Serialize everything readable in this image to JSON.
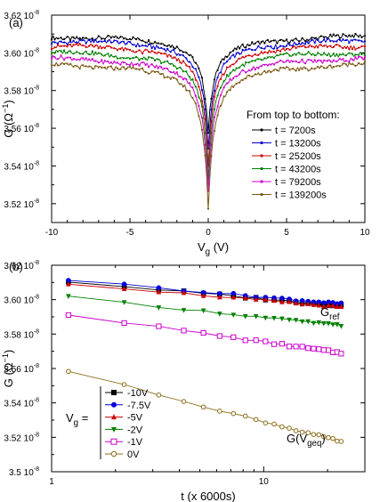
{
  "chart_data": [
    {
      "panel_label": "(a)",
      "type": "line",
      "xlabel": "V",
      "xlabel_sub": "g",
      "xlabel_unit": "(V)",
      "ylabel": "G (Ω",
      "ylabel_sup": "−1",
      "ylabel_close": ")",
      "xlim": [
        -10,
        10
      ],
      "ylim": [
        3.51e-08,
        3.62e-08
      ],
      "x_ticks": [
        -10,
        -5,
        0,
        5,
        10
      ],
      "y_ticks": [
        3.52e-08,
        3.54e-08,
        3.56e-08,
        3.58e-08,
        3.6e-08,
        3.62e-08
      ],
      "x_tick_labels": [
        "-10",
        "-5",
        "0",
        "5",
        "10"
      ],
      "y_tick_labels": [
        "3.52 10",
        "3.54 10",
        "3.56 10",
        "3.58 10",
        "3.60 10",
        "3.62 10"
      ],
      "y_tick_exp": "-8",
      "legend_title": "From top to bottom:",
      "legend_position": "lower-right",
      "series": [
        {
          "name": "t = 7200s",
          "color": "#000000",
          "plateau": 3.61e-08,
          "minimum": 3.558e-08
        },
        {
          "name": "t = 13200s",
          "color": "#0000cc",
          "plateau": 3.608e-08,
          "minimum": 3.549e-08
        },
        {
          "name": "t = 25200s",
          "color": "#cc0000",
          "plateau": 3.6055e-08,
          "minimum": 3.541e-08
        },
        {
          "name": "t = 43200s",
          "color": "#008000",
          "plateau": 3.602e-08,
          "minimum": 3.534e-08
        },
        {
          "name": "t = 79200s",
          "color": "#cc00cc",
          "plateau": 3.599e-08,
          "minimum": 3.526e-08
        },
        {
          "name": "t = 139200s",
          "color": "#7a5a14",
          "plateau": 3.596e-08,
          "minimum": 3.517e-08
        }
      ]
    },
    {
      "panel_label": "(b)",
      "type": "scatter",
      "xscale": "log",
      "xlabel": "t (x 6000s)",
      "ylabel": "G (Ω",
      "ylabel_sup": "−1",
      "ylabel_close": ")",
      "xlim": [
        1,
        30
      ],
      "ylim": [
        3.5e-08,
        3.62e-08
      ],
      "x_ticks": [
        1,
        10
      ],
      "x_tick_labels": [
        "1",
        "10"
      ],
      "y_ticks": [
        3.5e-08,
        3.52e-08,
        3.54e-08,
        3.56e-08,
        3.58e-08,
        3.6e-08,
        3.62e-08
      ],
      "y_tick_labels": [
        "3.5 10",
        "3.52 10",
        "3.54 10",
        "3.56 10",
        "3.58 10",
        "3.60 10",
        "3.62 10"
      ],
      "y_tick_exp": "-8",
      "legend_prefix": "V",
      "legend_prefix_sub": "g",
      "legend_prefix_eq": "=",
      "legend_position": "lower-left",
      "annotations": [
        {
          "text": "G",
          "sub": "ref"
        },
        {
          "text": "G(V",
          "sub": "geq",
          "close": ")"
        }
      ],
      "series": [
        {
          "name": "-10V",
          "color": "#000000",
          "marker": "square-filled",
          "y_start": 3.6105e-08,
          "y_end": 3.5965e-08
        },
        {
          "name": "-7.5V",
          "color": "#0000dd",
          "marker": "circle-filled",
          "y_start": 3.6115e-08,
          "y_end": 3.5975e-08
        },
        {
          "name": "-5V",
          "color": "#cc0000",
          "marker": "triangle-up-filled",
          "y_start": 3.6095e-08,
          "y_end": 3.5955e-08
        },
        {
          "name": "-2V",
          "color": "#008000",
          "marker": "triangle-down-filled",
          "y_start": 3.6015e-08,
          "y_end": 3.585e-08
        },
        {
          "name": "-1V",
          "color": "#cc00cc",
          "marker": "square-open",
          "y_start": 3.5915e-08,
          "y_end": 3.569e-08
        },
        {
          "name": "0V",
          "color": "#8a6d1a",
          "marker": "circle-open",
          "y_start": 3.5585e-08,
          "y_end": 3.5175e-08
        }
      ]
    }
  ]
}
